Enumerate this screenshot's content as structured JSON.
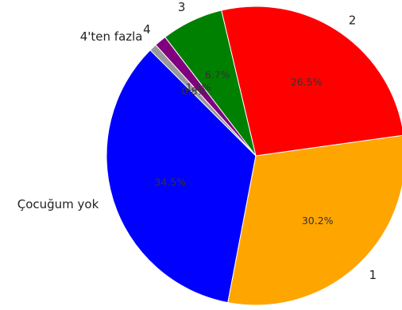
{
  "chart_data": {
    "type": "pie",
    "title": "",
    "categories": [
      "Çocuğum yok",
      "1",
      "2",
      "3",
      "4",
      "4'ten fazla"
    ],
    "values": [
      34.5,
      30.2,
      26.5,
      6.7,
      1.3,
      0.8
    ],
    "value_labels": [
      "34.5%",
      "30.2%",
      "26.5%",
      "6.7%",
      "1.3%",
      "0.8%"
    ],
    "colors": [
      "#0000ff",
      "#ffa500",
      "#ff0000",
      "#008000",
      "#800080",
      "#999999"
    ],
    "start_angle_deg": 135,
    "direction": "counterclockwise",
    "legend": "none"
  }
}
